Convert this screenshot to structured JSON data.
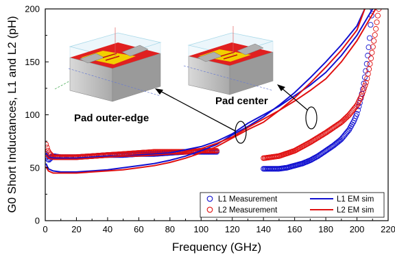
{
  "chart_data": {
    "type": "scatter",
    "xlabel": "Frequency (GHz)",
    "ylabel": "G0 Short Inductances, L1 and L2 (pH)",
    "xlim": [
      0,
      220
    ],
    "ylim": [
      0,
      200
    ],
    "xticks": [
      "0",
      "20",
      "40",
      "60",
      "80",
      "100",
      "120",
      "140",
      "160",
      "180",
      "200",
      "220"
    ],
    "yticks": [
      "0",
      "50",
      "100",
      "150",
      "200"
    ],
    "grid": false,
    "legend_position": "bottom-right",
    "series": [
      {
        "name": "L1 Measurement",
        "style": "markers",
        "color": "#1010d0",
        "segments": [
          [
            [
              0.5,
              63
            ],
            [
              2,
              57
            ],
            [
              5,
              61
            ],
            [
              10,
              60
            ],
            [
              20,
              60
            ],
            [
              30,
              61
            ],
            [
              40,
              62
            ],
            [
              50,
              62
            ],
            [
              60,
              63
            ],
            [
              70,
              63
            ],
            [
              80,
              64
            ],
            [
              90,
              65
            ],
            [
              100,
              65
            ],
            [
              110,
              65
            ]
          ],
          [
            [
              140,
              49
            ],
            [
              150,
              49
            ],
            [
              155,
              50
            ],
            [
              160,
              52
            ],
            [
              165,
              54
            ],
            [
              170,
              57
            ],
            [
              175,
              61
            ],
            [
              180,
              66
            ],
            [
              185,
              71
            ],
            [
              190,
              77
            ],
            [
              195,
              86
            ],
            [
              198,
              94
            ],
            [
              200,
              101
            ],
            [
              202,
              112
            ],
            [
              204,
              126
            ],
            [
              206,
              145
            ],
            [
              208,
              170
            ],
            [
              209,
              190
            ],
            [
              210,
              200
            ]
          ]
        ]
      },
      {
        "name": "L2 Measurement",
        "style": "markers",
        "color": "#e01010",
        "segments": [
          [
            [
              0.5,
              72
            ],
            [
              2,
              65
            ],
            [
              5,
              60
            ],
            [
              10,
              60
            ],
            [
              20,
              60
            ],
            [
              30,
              61
            ],
            [
              40,
              62
            ],
            [
              50,
              63
            ],
            [
              60,
              64
            ],
            [
              70,
              65
            ],
            [
              80,
              65
            ],
            [
              90,
              65
            ],
            [
              100,
              66
            ],
            [
              110,
              66
            ]
          ],
          [
            [
              140,
              59
            ],
            [
              150,
              61
            ],
            [
              160,
              66
            ],
            [
              170,
              74
            ],
            [
              180,
              83
            ],
            [
              190,
              93
            ],
            [
              195,
              100
            ],
            [
              200,
              109
            ],
            [
              203,
              118
            ],
            [
              206,
              131
            ],
            [
              208,
              145
            ],
            [
              210,
              162
            ],
            [
              212,
              180
            ],
            [
              214,
              200
            ]
          ]
        ]
      },
      {
        "name": "L1 EM sim",
        "style": "line",
        "color": "#1010d0",
        "segments": [
          [
            [
              0.5,
              54
            ],
            [
              2,
              49
            ],
            [
              5,
              47
            ],
            [
              10,
              46
            ],
            [
              20,
              46
            ],
            [
              30,
              47
            ],
            [
              40,
              48
            ],
            [
              50,
              50
            ],
            [
              60,
              52
            ],
            [
              70,
              54
            ],
            [
              80,
              57
            ],
            [
              90,
              61
            ],
            [
              100,
              66
            ],
            [
              110,
              72
            ],
            [
              120,
              81
            ],
            [
              130,
              89
            ],
            [
              140,
              98
            ],
            [
              150,
              109
            ],
            [
              160,
              121
            ],
            [
              170,
              135
            ],
            [
              180,
              150
            ],
            [
              190,
              166
            ],
            [
              200,
              184
            ],
            [
              205,
              200
            ]
          ],
          [
            [
              0.5,
              64
            ],
            [
              2,
              60
            ],
            [
              5,
              59
            ],
            [
              10,
              59
            ],
            [
              20,
              59
            ],
            [
              30,
              60
            ],
            [
              40,
              61
            ],
            [
              50,
              61
            ],
            [
              60,
              62
            ],
            [
              70,
              63
            ],
            [
              80,
              64
            ],
            [
              90,
              67
            ],
            [
              100,
              70
            ],
            [
              110,
              75
            ],
            [
              120,
              82
            ],
            [
              130,
              92
            ],
            [
              140,
              100
            ],
            [
              150,
              108
            ],
            [
              160,
              118
            ],
            [
              170,
              128
            ],
            [
              180,
              140
            ],
            [
              190,
              156
            ],
            [
              200,
              175
            ],
            [
              208,
              195
            ],
            [
              210,
              200
            ]
          ]
        ]
      },
      {
        "name": "L2 EM sim",
        "style": "line",
        "color": "#e01010",
        "segments": [
          [
            [
              0.5,
              51
            ],
            [
              2,
              47
            ],
            [
              5,
              45
            ],
            [
              10,
              45
            ],
            [
              20,
              45
            ],
            [
              30,
              46
            ],
            [
              40,
              47
            ],
            [
              50,
              48
            ],
            [
              60,
              50
            ],
            [
              70,
              52
            ],
            [
              80,
              55
            ],
            [
              90,
              59
            ],
            [
              100,
              64
            ],
            [
              110,
              70
            ],
            [
              120,
              78
            ],
            [
              130,
              86
            ],
            [
              140,
              93
            ],
            [
              150,
              104
            ],
            [
              160,
              116
            ],
            [
              170,
              130
            ],
            [
              180,
              145
            ],
            [
              190,
              161
            ],
            [
              200,
              180
            ],
            [
              205,
              200
            ]
          ],
          [
            [
              0.5,
              62
            ],
            [
              2,
              59
            ],
            [
              5,
              58
            ],
            [
              10,
              58
            ],
            [
              20,
              58
            ],
            [
              30,
              59
            ],
            [
              40,
              60
            ],
            [
              50,
              61
            ],
            [
              60,
              61
            ],
            [
              70,
              62
            ],
            [
              80,
              63
            ],
            [
              90,
              65
            ],
            [
              100,
              68
            ],
            [
              110,
              73
            ],
            [
              120,
              79
            ],
            [
              130,
              88
            ],
            [
              140,
              96
            ],
            [
              150,
              104
            ],
            [
              160,
              113
            ],
            [
              170,
              123
            ],
            [
              180,
              134
            ],
            [
              190,
              150
            ],
            [
              200,
              170
            ],
            [
              208,
              190
            ],
            [
              212,
              200
            ]
          ]
        ]
      }
    ],
    "annotations": [
      "Pad outer-edge",
      "Pad center"
    ]
  }
}
